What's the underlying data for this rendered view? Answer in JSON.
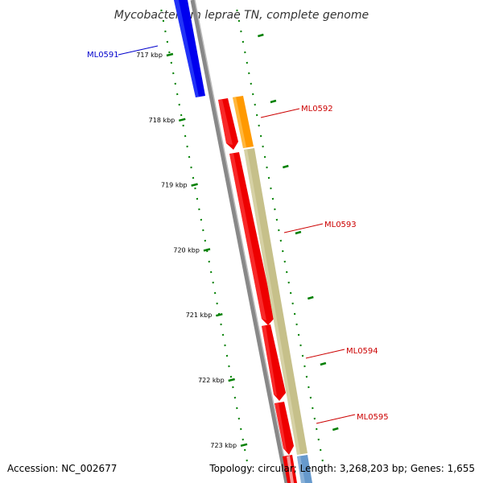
{
  "title": "Mycobacterium leprae TN, complete genome",
  "footer": {
    "accession": "Accession: NC_002677",
    "summary": "Topology: circular; Length: 3,268,203 bp; Genes: 1,655"
  },
  "scale_ticks": [
    {
      "label": "717 kbp",
      "kbp": 717
    },
    {
      "label": "718 kbp",
      "kbp": 718
    },
    {
      "label": "719 kbp",
      "kbp": 719
    },
    {
      "label": "720 kbp",
      "kbp": 720
    },
    {
      "label": "721 kbp",
      "kbp": 721
    },
    {
      "label": "722 kbp",
      "kbp": 722
    },
    {
      "label": "723 kbp",
      "kbp": 723
    }
  ],
  "genes": [
    {
      "name": "ML0591",
      "color": "#0000ee",
      "strand": "minus"
    },
    {
      "name": "ML0592",
      "color": "#cc0000",
      "strand": "plus"
    },
    {
      "name": "ML0593",
      "color": "#cc0000",
      "strand": "plus"
    },
    {
      "name": "ML0594",
      "color": "#cc0000",
      "strand": "plus"
    },
    {
      "name": "ML0595",
      "color": "#cc0000",
      "strand": "plus"
    }
  ],
  "colors": {
    "minus_strand_gene": "#0000ee",
    "plus_strand_gene": "#ff0000",
    "cds_orange": "#ff9900",
    "cds_olive": "#c6c08a",
    "cds_steelblue": "#6699cc",
    "backbone": "#888888",
    "tick_marks": "#008000"
  }
}
